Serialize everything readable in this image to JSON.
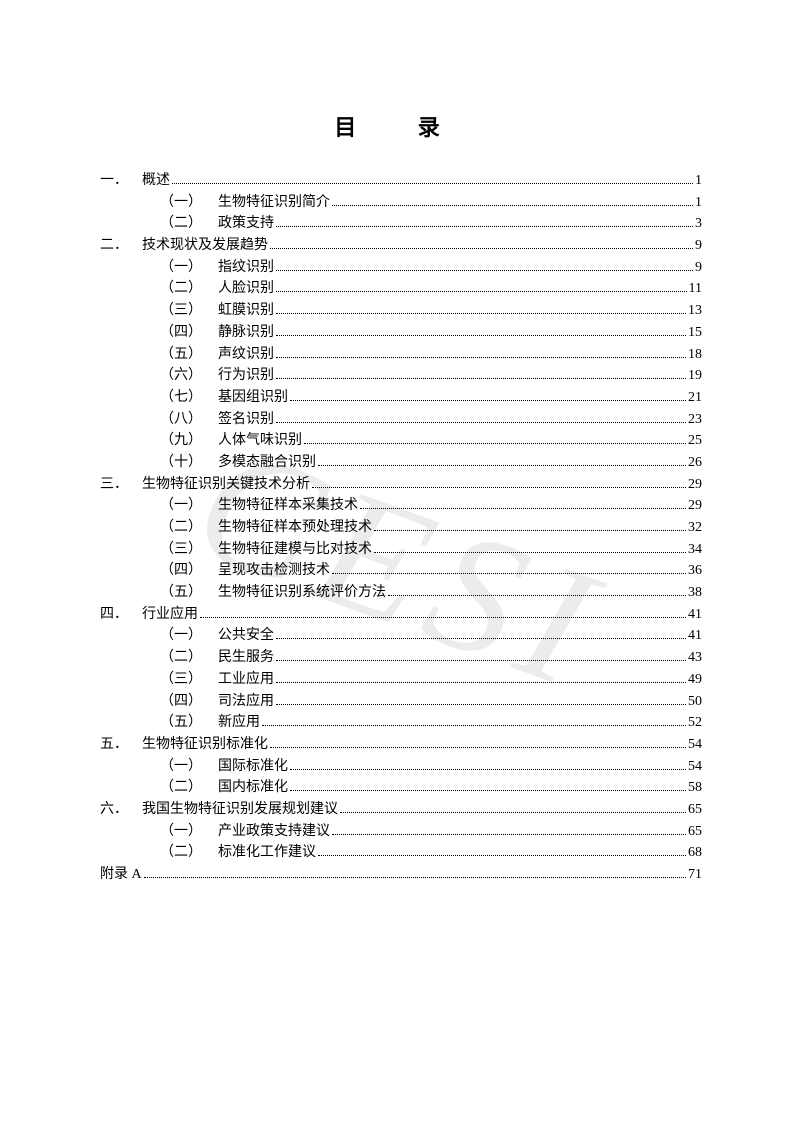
{
  "title": "目  录",
  "watermark_text": "CESI",
  "watermark_color": "rgba(180, 180, 180, 0.25)",
  "text_color": "#000000",
  "background_color": "#ffffff",
  "fontsize_title": 22,
  "fontsize_body": 14,
  "entries": [
    {
      "level": 1,
      "num": "一．",
      "label": "概述",
      "page": "1"
    },
    {
      "level": 2,
      "num": "（一）",
      "label": "生物特征识别简介",
      "page": "1"
    },
    {
      "level": 2,
      "num": "（二）",
      "label": "政策支持",
      "page": "3"
    },
    {
      "level": 1,
      "num": "二．",
      "label": "技术现状及发展趋势",
      "page": "9"
    },
    {
      "level": 2,
      "num": "（一）",
      "label": "指纹识别",
      "page": "9"
    },
    {
      "level": 2,
      "num": "（二）",
      "label": "人脸识别",
      "page": "11"
    },
    {
      "level": 2,
      "num": "（三）",
      "label": "虹膜识别",
      "page": "13"
    },
    {
      "level": 2,
      "num": "（四）",
      "label": "静脉识别",
      "page": "15"
    },
    {
      "level": 2,
      "num": "（五）",
      "label": "声纹识别",
      "page": "18"
    },
    {
      "level": 2,
      "num": "（六）",
      "label": "行为识别",
      "page": "19"
    },
    {
      "level": 2,
      "num": "（七）",
      "label": "基因组识别",
      "page": "21"
    },
    {
      "level": 2,
      "num": "（八）",
      "label": "签名识别",
      "page": "23"
    },
    {
      "level": 2,
      "num": "（九）",
      "label": "人体气味识别",
      "page": "25"
    },
    {
      "level": 2,
      "num": "（十）",
      "label": "多模态融合识别",
      "page": "26"
    },
    {
      "level": 1,
      "num": "三．",
      "label": "生物特征识别关键技术分析",
      "page": "29"
    },
    {
      "level": 2,
      "num": "（一）",
      "label": "生物特征样本采集技术",
      "page": "29"
    },
    {
      "level": 2,
      "num": "（二）",
      "label": "生物特征样本预处理技术",
      "page": "32"
    },
    {
      "level": 2,
      "num": "（三）",
      "label": "生物特征建模与比对技术",
      "page": "34"
    },
    {
      "level": 2,
      "num": "（四）",
      "label": "呈现攻击检测技术",
      "page": "36"
    },
    {
      "level": 2,
      "num": "（五）",
      "label": "生物特征识别系统评价方法",
      "page": "38"
    },
    {
      "level": 1,
      "num": "四．",
      "label": "行业应用",
      "page": "41"
    },
    {
      "level": 2,
      "num": "（一）",
      "label": "公共安全",
      "page": "41"
    },
    {
      "level": 2,
      "num": "（二）",
      "label": "民生服务",
      "page": "43"
    },
    {
      "level": 2,
      "num": "（三）",
      "label": "工业应用",
      "page": "49"
    },
    {
      "level": 2,
      "num": "（四）",
      "label": "司法应用",
      "page": "50"
    },
    {
      "level": 2,
      "num": "（五）",
      "label": "新应用",
      "page": "52"
    },
    {
      "level": 1,
      "num": "五．",
      "label": "生物特征识别标准化",
      "page": "54"
    },
    {
      "level": 2,
      "num": "（一）",
      "label": "国际标准化",
      "page": "54"
    },
    {
      "level": 2,
      "num": "（二）",
      "label": "国内标准化",
      "page": "58"
    },
    {
      "level": 1,
      "num": "六．",
      "label": "我国生物特征识别发展规划建议",
      "page": "65"
    },
    {
      "level": 2,
      "num": "（一）",
      "label": "产业政策支持建议",
      "page": "65"
    },
    {
      "level": 2,
      "num": "（二）",
      "label": "标准化工作建议",
      "page": "68"
    },
    {
      "level": 0,
      "num": "",
      "label": "附录 A",
      "page": "71"
    }
  ]
}
